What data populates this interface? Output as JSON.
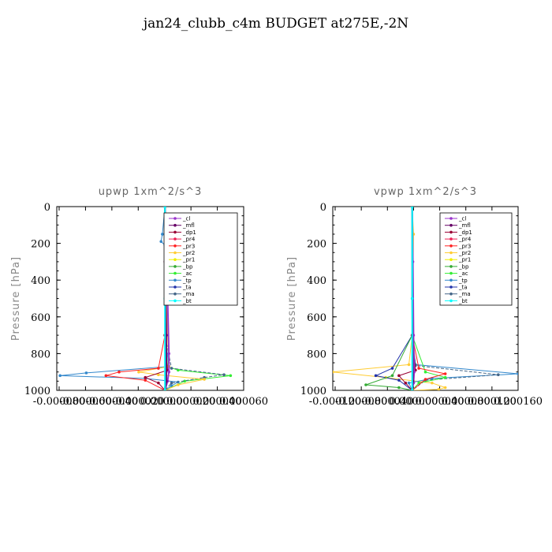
{
  "title": "jan24_clubb_c4m  BUDGET at275E,-2N",
  "colors": {
    "_cl": "#9933cc",
    "_mfl": "#660066",
    "_dp1": "#990033",
    "_pr4": "#ee2255",
    "_pr3": "#ff2222",
    "_pr2": "#ffcc33",
    "_pr1": "#eeee00",
    "_bp": "#33aa33",
    "_ac": "#33ee33",
    "_tp": "#3388cc",
    "_ta": "#2233aa",
    "_ma": "#446688",
    "_bt": "#00ffff"
  },
  "chart_data": [
    {
      "type": "line",
      "title": "upwp   1xm^2/s^3",
      "ylabel": "Pressure [hPa]",
      "ylim": [
        1000,
        0
      ],
      "yticks": [
        0,
        200,
        400,
        600,
        800,
        1000
      ],
      "xlim": [
        -8.25e-05,
        6e-05
      ],
      "xtick_labels": [
        "-0.000080",
        "-0.000060",
        "-0.000040",
        "-0.000020",
        "0.000000",
        "0.000020",
        "0.000040",
        "0.000060"
      ],
      "legend": [
        "_cl",
        "_mfl",
        "_dp1",
        "_pr4",
        "_pr3",
        "_pr2",
        "_pr1",
        "_bp",
        "_ac",
        "_tp",
        "_ta",
        "_ma",
        "_bt"
      ],
      "legend_position": "top-right",
      "series": [
        {
          "name": "_tp",
          "x": [
            0,
            -2e-06,
            -3e-06,
            0,
            0,
            3e-06,
            -6e-05,
            -8e-05,
            -1.5e-05,
            1e-05,
            5e-06,
            0
          ],
          "y": [
            0,
            150,
            190,
            210,
            700,
            870,
            905,
            920,
            935,
            955,
            975,
            1000
          ]
        },
        {
          "name": "_ac",
          "x": [
            0,
            0,
            2e-06,
            1e-05,
            5e-05,
            1.5e-05,
            0
          ],
          "y": [
            0,
            700,
            870,
            890,
            920,
            950,
            1000
          ]
        },
        {
          "name": "_ma",
          "x": [
            0,
            0,
            5e-06,
            4.5e-05,
            3e-05,
            5e-06,
            0
          ],
          "y": [
            0,
            700,
            880,
            915,
            930,
            960,
            1000
          ]
        },
        {
          "name": "_pr2",
          "x": [
            0,
            3e-06,
            2e-06,
            0,
            2e-06,
            3e-06,
            -2e-05,
            -5e-06,
            3e-05,
            1e-05,
            0
          ],
          "y": [
            0,
            160,
            200,
            300,
            700,
            870,
            900,
            915,
            940,
            970,
            1000
          ]
        },
        {
          "name": "_pr3",
          "x": [
            0,
            0,
            -5e-06,
            -3.5e-05,
            -4.5e-05,
            -1.5e-05,
            0
          ],
          "y": [
            0,
            700,
            880,
            900,
            920,
            945,
            1000
          ]
        },
        {
          "name": "_dp1",
          "x": [
            0,
            0,
            2e-06,
            -1.5e-05,
            -5e-06,
            0
          ],
          "y": [
            0,
            700,
            890,
            930,
            960,
            1000
          ]
        },
        {
          "name": "_cl",
          "x": [
            0,
            1e-06,
            2e-06,
            3e-06,
            3e-06,
            2e-06,
            0
          ],
          "y": [
            0,
            200,
            500,
            800,
            900,
            950,
            1000
          ]
        },
        {
          "name": "_mfl",
          "x": [
            0,
            0,
            1e-06,
            1e-06,
            0
          ],
          "y": [
            0,
            300,
            700,
            950,
            1000
          ]
        },
        {
          "name": "_bt",
          "x": [
            0,
            0,
            0
          ],
          "y": [
            0,
            500,
            1000
          ]
        }
      ]
    },
    {
      "type": "line",
      "title": "vpwp   1xm^2/s^3",
      "ylabel": "Pressure [hPa]",
      "ylim": [
        1000,
        0
      ],
      "yticks": [
        0,
        200,
        400,
        600,
        800,
        1000
      ],
      "xlim": [
        -0.00012,
        0.00016
      ],
      "xtick_labels": [
        "-0.000120",
        "-0.000080",
        "-0.000040",
        "0.000000",
        "0.000040",
        "0.000080",
        "0.000120",
        "0.000160"
      ],
      "legend": [
        "_cl",
        "_mfl",
        "_dp1",
        "_pr4",
        "_pr3",
        "_pr2",
        "_pr1",
        "_bp",
        "_ac",
        "_tp",
        "_ta",
        "_ma",
        "_bt"
      ],
      "legend_position": "top-right",
      "series": [
        {
          "name": "_pr2",
          "x": [
            0,
            2e-06,
            0,
            -5e-06,
            -0.00012,
            -4e-05,
            3e-05,
            5e-05,
            4e-05,
            0
          ],
          "y": [
            0,
            150,
            700,
            860,
            900,
            930,
            960,
            985,
            995,
            1000
          ]
        },
        {
          "name": "_tp",
          "x": [
            0,
            0,
            5e-06,
            0.00016,
            3e-05,
            -5e-06,
            0
          ],
          "y": [
            0,
            700,
            860,
            910,
            935,
            960,
            1000
          ]
        },
        {
          "name": "_ma",
          "x": [
            0,
            0,
            5e-06,
            0.00013,
            2e-05,
            0
          ],
          "y": [
            0,
            700,
            865,
            915,
            945,
            1000
          ]
        },
        {
          "name": "_ta",
          "x": [
            0,
            0,
            -3e-05,
            -5.5e-05,
            -2e-05,
            0
          ],
          "y": [
            0,
            700,
            880,
            920,
            945,
            1000
          ]
        },
        {
          "name": "_bp",
          "x": [
            0,
            0,
            -3e-05,
            -7e-05,
            -2e-05,
            0
          ],
          "y": [
            0,
            700,
            920,
            970,
            985,
            1000
          ]
        },
        {
          "name": "_ac",
          "x": [
            0,
            0,
            2e-05,
            5e-05,
            1e-05,
            0
          ],
          "y": [
            0,
            700,
            900,
            930,
            960,
            1000
          ]
        },
        {
          "name": "_pr3",
          "x": [
            0,
            0,
            1e-05,
            5e-05,
            2e-05,
            0
          ],
          "y": [
            0,
            700,
            880,
            910,
            940,
            1000
          ]
        },
        {
          "name": "_dp1",
          "x": [
            0,
            0,
            5e-06,
            -2e-05,
            -1e-05,
            0
          ],
          "y": [
            0,
            700,
            890,
            920,
            960,
            1000
          ]
        },
        {
          "name": "_cl",
          "x": [
            0,
            1e-06,
            2e-06,
            3e-06,
            2e-06,
            0
          ],
          "y": [
            0,
            300,
            700,
            900,
            960,
            1000
          ]
        },
        {
          "name": "_mfl",
          "x": [
            0,
            0,
            1e-06,
            0
          ],
          "y": [
            0,
            500,
            950,
            1000
          ]
        },
        {
          "name": "_bt",
          "x": [
            0,
            0,
            0
          ],
          "y": [
            0,
            500,
            1000
          ]
        }
      ]
    }
  ]
}
